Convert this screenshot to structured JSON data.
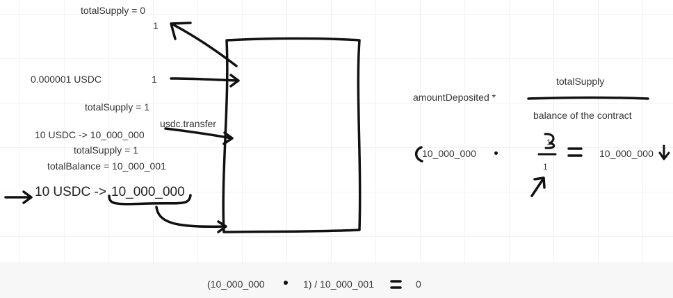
{
  "left_notes": {
    "total_supply_zero": "totalSupply = 0",
    "one_top": "1",
    "usdc_small": "0.000001 USDC",
    "one_mid": "1",
    "total_supply_one_a": "totalSupply = 1",
    "usdc_transfer": "usdc.transfer",
    "ten_usdc_small": "10 USDC -> 10_000_000",
    "total_supply_one_b": "totalSupply = 1",
    "total_balance": "totalBalance = 10_000_001",
    "ten_usdc_big_prefix": "10 USDC ->",
    "ten_usdc_big_value": "10_000_000"
  },
  "formula": {
    "amount_deposited": "amountDeposited *",
    "numerator": "totalSupply",
    "denominator": "balance of the contract"
  },
  "right_calc": {
    "lhs": "10_000_000",
    "frac_top": "1",
    "frac_bottom": "1",
    "rhs": "10_000_000"
  },
  "bottom_calc": {
    "left": "(10_000_000",
    "middle": "1) / 10_000_001",
    "result": "0"
  }
}
